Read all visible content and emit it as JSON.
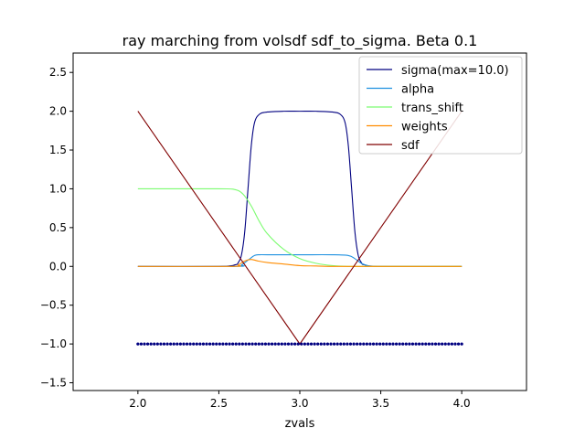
{
  "chart_data": {
    "type": "line",
    "title": "ray marching from volsdf sdf_to_sigma. Beta 0.1",
    "xlabel": "zvals",
    "ylabel": "",
    "xlim": [
      1.6,
      4.4
    ],
    "ylim": [
      -1.6,
      2.75
    ],
    "x_ticks": [
      "2.0",
      "2.5",
      "3.0",
      "3.5",
      "4.0"
    ],
    "y_ticks": [
      "−1.5",
      "−1.0",
      "−0.5",
      "0.0",
      "0.5",
      "1.0",
      "1.5",
      "2.0",
      "2.5"
    ],
    "grid": false,
    "legend_position": "top-right",
    "series": [
      {
        "name": "sigma(max=10.0)",
        "color": "#000080",
        "x": [
          2.0,
          2.5,
          2.6,
          2.62,
          2.64,
          2.66,
          2.68,
          2.7,
          2.72,
          2.75,
          2.8,
          2.9,
          3.0,
          3.1,
          3.2,
          3.25,
          3.28,
          3.3,
          3.32,
          3.34,
          3.36,
          3.38,
          3.4,
          3.5,
          4.0
        ],
        "values": [
          0.0,
          0.0,
          0.02,
          0.05,
          0.15,
          0.45,
          1.0,
          1.55,
          1.85,
          1.96,
          1.99,
          2.0,
          2.0,
          2.0,
          1.99,
          1.96,
          1.85,
          1.55,
          1.0,
          0.45,
          0.15,
          0.05,
          0.02,
          0.0,
          0.0
        ]
      },
      {
        "name": "alpha",
        "color": "#1e90e0",
        "x": [
          2.0,
          2.6,
          2.64,
          2.68,
          2.72,
          2.75,
          2.8,
          3.0,
          3.2,
          3.3,
          3.34,
          3.38,
          3.42,
          3.5,
          4.0
        ],
        "values": [
          0.0,
          0.0,
          0.02,
          0.08,
          0.14,
          0.15,
          0.15,
          0.15,
          0.15,
          0.14,
          0.1,
          0.04,
          0.01,
          0.0,
          0.0
        ]
      },
      {
        "name": "trans_shift",
        "color": "#7cfc70",
        "x": [
          2.0,
          2.5,
          2.6,
          2.65,
          2.7,
          2.75,
          2.8,
          2.9,
          3.0,
          3.1,
          3.2,
          3.3,
          3.4,
          4.0
        ],
        "values": [
          1.0,
          1.0,
          0.99,
          0.93,
          0.78,
          0.58,
          0.42,
          0.22,
          0.1,
          0.04,
          0.01,
          0.0,
          0.0,
          0.0
        ]
      },
      {
        "name": "weights",
        "color": "#ff8c00",
        "x": [
          2.0,
          2.58,
          2.62,
          2.66,
          2.7,
          2.74,
          2.8,
          2.9,
          3.0,
          3.1,
          3.2,
          3.3,
          4.0
        ],
        "values": [
          0.0,
          0.0,
          0.02,
          0.07,
          0.09,
          0.07,
          0.05,
          0.03,
          0.01,
          0.005,
          0.0,
          0.0,
          0.0
        ]
      },
      {
        "name": "sdf",
        "color": "#800000",
        "x": [
          2.0,
          3.0,
          4.0
        ],
        "values": [
          2.0,
          -1.0,
          2.0
        ]
      }
    ],
    "markers": {
      "color": "#000080",
      "y": -1.0,
      "x_start": 2.0,
      "x_end": 4.0,
      "count": 100
    }
  }
}
